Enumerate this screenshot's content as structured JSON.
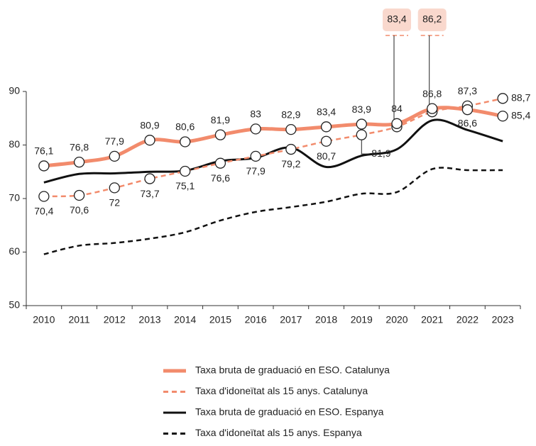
{
  "chart_data": {
    "type": "line",
    "categories": [
      "2010",
      "2011",
      "2012",
      "2013",
      "2014",
      "2015",
      "2016",
      "2017",
      "2018",
      "2019",
      "2020",
      "2021",
      "2022",
      "2023"
    ],
    "ylim": [
      50,
      90
    ],
    "yticks": [
      50,
      60,
      70,
      80,
      90
    ],
    "series": [
      {
        "name": "Taxa bruta de graduació en ESO. Catalunya",
        "color": "#f28b6c",
        "line_style": "solid",
        "values": [
          76.1,
          76.8,
          77.9,
          80.9,
          80.6,
          81.9,
          83,
          82.9,
          83.4,
          83.9,
          84,
          86.8,
          86.6,
          85.4
        ],
        "value_labels": [
          "76,1",
          "76,8",
          "77,9",
          "80,9",
          "80,6",
          "81,9",
          "83",
          "82,9",
          "83,4",
          "83,9",
          "84",
          "86,8",
          "86,6",
          "85,4"
        ]
      },
      {
        "name": "Taxa d'idoneïtat als 15 anys. Catalunya",
        "color": "#f28b6c",
        "line_style": "dashed",
        "values": [
          70.4,
          70.6,
          72,
          73.7,
          75.1,
          76.6,
          77.9,
          79.2,
          80.7,
          81.9,
          83.4,
          86.2,
          87.3,
          88.7
        ],
        "value_labels": [
          "70,4",
          "70,6",
          "72",
          "73,7",
          "75,1",
          "76,6",
          "77,9",
          "79,2",
          "80,7",
          "81,9",
          "83,4",
          "86,2",
          "87,3",
          "88,7"
        ]
      },
      {
        "name": "Taxa bruta de graduació en ESO. Espanya",
        "color": "#111111",
        "line_style": "solid",
        "values": [
          73,
          74.6,
          74.7,
          75,
          75.2,
          77,
          77.6,
          79.5,
          75.9,
          78,
          79.2,
          84.6,
          82.8,
          80.7
        ]
      },
      {
        "name": "Taxa d'idoneïtat als 15 anys. Espanya",
        "color": "#111111",
        "line_style": "dashed",
        "values": [
          59.6,
          61.2,
          61.7,
          62.5,
          63.7,
          65.9,
          67.5,
          68.4,
          69.4,
          70.9,
          71.2,
          75.5,
          75.3,
          75.3
        ]
      }
    ]
  }
}
